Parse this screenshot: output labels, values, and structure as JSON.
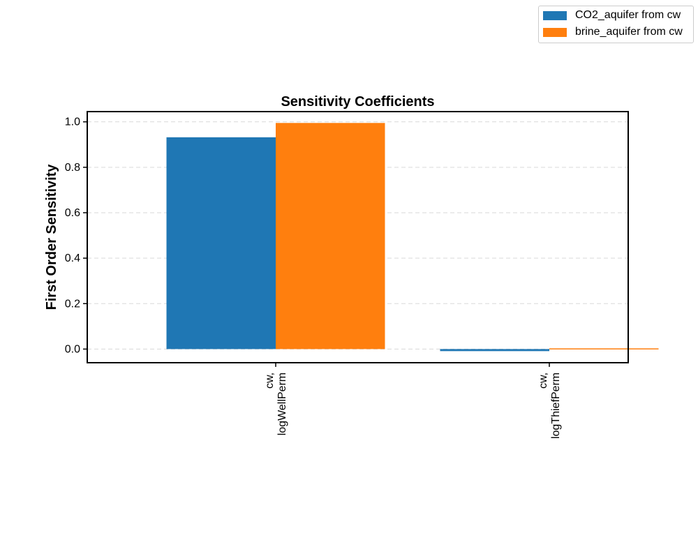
{
  "chart_data": {
    "type": "bar",
    "title": "Sensitivity Coefficients",
    "xlabel": "",
    "ylabel": "First Order Sensitivity",
    "categories": [
      "cw,\nlogWellPerm",
      "cw,\nlogThiefPerm"
    ],
    "series": [
      {
        "name": "CO2_aquifer from cw",
        "color": "#1f77b4",
        "values": [
          0.932,
          -0.009
        ]
      },
      {
        "name": "brine_aquifer from cw",
        "color": "#ff7f0e",
        "values": [
          0.995,
          0.003
        ]
      }
    ],
    "ylim": [
      -0.06,
      1.045
    ],
    "yticks": [
      0.0,
      0.2,
      0.4,
      0.6,
      0.8,
      1.0
    ],
    "ytick_labels": [
      "0.0",
      "0.2",
      "0.4",
      "0.6",
      "0.8",
      "1.0"
    ],
    "grid": true,
    "grid_axis": "y",
    "legend_position": "top-right"
  }
}
